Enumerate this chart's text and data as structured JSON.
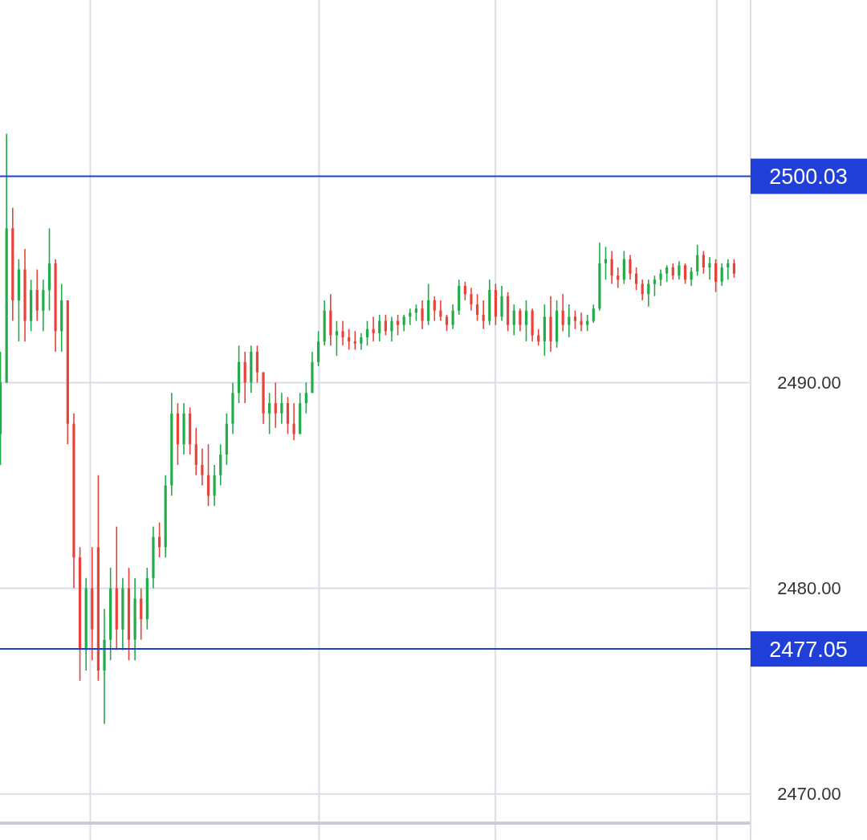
{
  "chart_data": {
    "type": "candlestick",
    "categories": [
      null,
      null,
      null,
      null,
      null,
      null,
      null,
      null,
      null,
      null,
      null,
      null,
      null,
      null,
      null,
      null,
      null,
      null,
      null,
      null,
      null,
      null,
      null,
      null,
      null,
      null,
      null,
      null,
      null,
      null,
      null,
      null,
      null,
      null,
      null,
      null,
      null,
      null,
      null,
      null,
      null,
      null,
      null,
      null,
      null,
      null,
      null,
      null,
      null,
      null,
      null,
      null,
      null,
      null,
      null,
      null,
      null,
      null,
      null,
      null,
      null,
      null,
      null,
      null,
      null,
      null,
      null,
      null,
      null,
      null,
      null,
      null,
      null,
      null,
      null,
      null,
      null,
      null,
      null,
      null,
      null,
      null,
      null,
      null,
      null,
      null,
      null,
      null,
      null,
      null,
      null,
      null,
      null,
      null,
      null,
      null,
      null,
      null,
      null,
      null,
      null,
      null,
      null,
      null,
      null,
      null,
      null,
      null,
      null,
      null,
      null,
      null,
      null,
      null,
      null,
      null,
      null,
      null,
      null,
      null,
      null
    ],
    "ohlc": [
      [
        2487.5,
        2491.5,
        2486,
        2490
      ],
      [
        2490,
        2502.1,
        2490,
        2497.5
      ],
      [
        2497.5,
        2498.5,
        2493,
        2494
      ],
      [
        2494,
        2496,
        2492,
        2495.5
      ],
      [
        2495.5,
        2496.5,
        2492,
        2493
      ],
      [
        2493,
        2495,
        2492.5,
        2494.5
      ],
      [
        2494.5,
        2495.5,
        2493,
        2493.5
      ],
      [
        2493.5,
        2495,
        2492.5,
        2494.5
      ],
      [
        2494.5,
        2497.5,
        2493.5,
        2495.8
      ],
      [
        2495.8,
        2496,
        2491.5,
        2492.5
      ],
      [
        2492.5,
        2494.8,
        2491.5,
        2494
      ],
      [
        2494,
        2494,
        2487,
        2488
      ],
      [
        2488,
        2488.5,
        2480,
        2481.5
      ],
      [
        2481.5,
        2482,
        2475.5,
        2477
      ],
      [
        2477,
        2480.5,
        2476,
        2480
      ],
      [
        2480,
        2482,
        2476.5,
        2478
      ],
      [
        2482,
        2485.5,
        2475.5,
        2476
      ],
      [
        2476,
        2479,
        2473.4,
        2477.5
      ],
      [
        2477.5,
        2481,
        2476.5,
        2480
      ],
      [
        2480,
        2483,
        2477,
        2478
      ],
      [
        2478,
        2480.5,
        2477,
        2480
      ],
      [
        2480,
        2481,
        2476.5,
        2477.5
      ],
      [
        2477.5,
        2480.5,
        2476.5,
        2479.5
      ],
      [
        2479.5,
        2480,
        2477.5,
        2478.5
      ],
      [
        2478.5,
        2481,
        2478,
        2480.5
      ],
      [
        2480.5,
        2483,
        2480,
        2482.5
      ],
      [
        2482.5,
        2483.2,
        2481.5,
        2482
      ],
      [
        2482,
        2485.5,
        2481.5,
        2485
      ],
      [
        2485,
        2489.5,
        2484.5,
        2488.5
      ],
      [
        2488.5,
        2489,
        2486,
        2487
      ],
      [
        2487,
        2489,
        2486.5,
        2488.5
      ],
      [
        2488.5,
        2488.8,
        2486.5,
        2487
      ],
      [
        2487,
        2487.8,
        2485.5,
        2486
      ],
      [
        2486,
        2486.8,
        2485,
        2485.5
      ],
      [
        2485.5,
        2487,
        2484,
        2484.5
      ],
      [
        2484.5,
        2486,
        2484,
        2485.5
      ],
      [
        2485.5,
        2487,
        2485,
        2486.5
      ],
      [
        2486.5,
        2488.5,
        2486,
        2488
      ],
      [
        2488,
        2490,
        2487.5,
        2489.5
      ],
      [
        2489.5,
        2491.8,
        2489,
        2491
      ],
      [
        2491,
        2491.5,
        2489,
        2490
      ],
      [
        2490,
        2491.8,
        2489.5,
        2491.5
      ],
      [
        2491.5,
        2491.8,
        2490,
        2490.5
      ],
      [
        2490.5,
        2490.5,
        2488,
        2488.5
      ],
      [
        2488.5,
        2489.5,
        2487.5,
        2489
      ],
      [
        2489,
        2490,
        2487.8,
        2488.5
      ],
      [
        2488.5,
        2489.5,
        2488,
        2489
      ],
      [
        2489,
        2489.3,
        2487.5,
        2488
      ],
      [
        2488,
        2489,
        2487.2,
        2487.5
      ],
      [
        2487.5,
        2489.5,
        2487.5,
        2489
      ],
      [
        2489,
        2490,
        2488.5,
        2489.5
      ],
      [
        2489.5,
        2491.5,
        2489.5,
        2491
      ],
      [
        2491,
        2492.5,
        2490.8,
        2492
      ],
      [
        2492,
        2494,
        2491.8,
        2493.5
      ],
      [
        2493.5,
        2494.3,
        2491.8,
        2492.3
      ],
      [
        2492.3,
        2493,
        2491.3,
        2492.5
      ],
      [
        2492.5,
        2493,
        2491.8,
        2492.2
      ],
      [
        2492.2,
        2492.6,
        2491.6,
        2492
      ],
      [
        2492,
        2492.5,
        2491.6,
        2491.9
      ],
      [
        2491.9,
        2492.4,
        2491.6,
        2492.2
      ],
      [
        2492.2,
        2493,
        2491.8,
        2492.6
      ],
      [
        2492.6,
        2493.2,
        2492,
        2492.4
      ],
      [
        2492.4,
        2493.3,
        2492,
        2493
      ],
      [
        2493,
        2493.3,
        2492.3,
        2492.5
      ],
      [
        2492.5,
        2493.2,
        2492,
        2493
      ],
      [
        2493,
        2493.3,
        2492.3,
        2492.8
      ],
      [
        2492.8,
        2493.3,
        2492.5,
        2493.2
      ],
      [
        2493.2,
        2493.6,
        2492.8,
        2493.4
      ],
      [
        2493.4,
        2493.8,
        2493,
        2493.6
      ],
      [
        2493.6,
        2494,
        2492.6,
        2493
      ],
      [
        2493,
        2494.8,
        2492.8,
        2494
      ],
      [
        2494,
        2494.2,
        2493,
        2493.5
      ],
      [
        2493.5,
        2494,
        2493,
        2493.2
      ],
      [
        2493.2,
        2493.3,
        2492.5,
        2492.8
      ],
      [
        2492.8,
        2493.8,
        2492.6,
        2493.5
      ],
      [
        2493.5,
        2495,
        2493.3,
        2494.7
      ],
      [
        2494.7,
        2494.9,
        2494,
        2494.3
      ],
      [
        2494.3,
        2494.6,
        2493.5,
        2493.8
      ],
      [
        2493.8,
        2494.3,
        2493,
        2493.3
      ],
      [
        2493.3,
        2494,
        2492.6,
        2493
      ],
      [
        2493,
        2495,
        2492.8,
        2494.5
      ],
      [
        2494.5,
        2494.8,
        2492.8,
        2493.2
      ],
      [
        2493.2,
        2494.7,
        2493,
        2494.2
      ],
      [
        2494.2,
        2494.4,
        2492.5,
        2492.8
      ],
      [
        2492.8,
        2493.8,
        2492.3,
        2493.5
      ],
      [
        2493.5,
        2493.6,
        2492.5,
        2492.8
      ],
      [
        2492.8,
        2494,
        2492,
        2493.5
      ],
      [
        2493.5,
        2493.6,
        2492,
        2492.3
      ],
      [
        2492.3,
        2492.6,
        2491.8,
        2492
      ],
      [
        2492,
        2493.8,
        2491.3,
        2493.2
      ],
      [
        2493.2,
        2494.2,
        2491.5,
        2492
      ],
      [
        2492,
        2494,
        2491.7,
        2493.5
      ],
      [
        2493.5,
        2494.3,
        2492.5,
        2492.8
      ],
      [
        2492.8,
        2493.8,
        2492.2,
        2493.2
      ],
      [
        2493.2,
        2493.5,
        2492.6,
        2493
      ],
      [
        2493,
        2493.4,
        2492.5,
        2492.8
      ],
      [
        2492.8,
        2493.3,
        2492.5,
        2493
      ],
      [
        2493,
        2493.8,
        2492.9,
        2493.6
      ],
      [
        2493.6,
        2496.8,
        2493.5,
        2495.8
      ],
      [
        2495.8,
        2496.6,
        2495,
        2496
      ],
      [
        2496,
        2496.4,
        2494.8,
        2495.2
      ],
      [
        2495.2,
        2495.6,
        2494.6,
        2495
      ],
      [
        2495,
        2496.4,
        2494.8,
        2496
      ],
      [
        2496,
        2496.2,
        2495,
        2495.3
      ],
      [
        2495.3,
        2495.6,
        2494.5,
        2494.8
      ],
      [
        2494.8,
        2495,
        2494,
        2494.3
      ],
      [
        2494.3,
        2495,
        2493.7,
        2494.8
      ],
      [
        2494.8,
        2495.2,
        2494.2,
        2495
      ],
      [
        2495,
        2495.5,
        2494.7,
        2495.3
      ],
      [
        2495.3,
        2495.7,
        2494.9,
        2495.6
      ],
      [
        2495.6,
        2495.8,
        2495,
        2495.2
      ],
      [
        2495.2,
        2495.9,
        2495,
        2495.7
      ],
      [
        2495.7,
        2495.8,
        2494.8,
        2495
      ],
      [
        2495,
        2495.6,
        2494.7,
        2495.4
      ],
      [
        2495.4,
        2496.7,
        2495.2,
        2496.2
      ],
      [
        2496.2,
        2496.4,
        2495.3,
        2495.6
      ],
      [
        2495.6,
        2496.1,
        2495,
        2495.8
      ],
      [
        2495.8,
        2496,
        2494.4,
        2494.9
      ],
      [
        2494.9,
        2495.8,
        2494.7,
        2495.6
      ],
      [
        2495.6,
        2496,
        2495,
        2495.8
      ],
      [
        2495.8,
        2496,
        2495.1,
        2495.3
      ]
    ],
    "ylim": [
      2468.7,
      2508.6
    ],
    "yticks": [
      {
        "value": 2470,
        "label": "2470.00"
      },
      {
        "value": 2480,
        "label": "2480.00"
      },
      {
        "value": 2490,
        "label": "2490.00"
      }
    ],
    "grid": true,
    "ref_lines": [
      {
        "axis": "y",
        "value": 2500.03,
        "label": "2500.03",
        "color": "#1f3fd8"
      },
      {
        "axis": "y",
        "value": 2477.05,
        "label": "2477.05",
        "color": "#1f3fd8"
      }
    ]
  }
}
